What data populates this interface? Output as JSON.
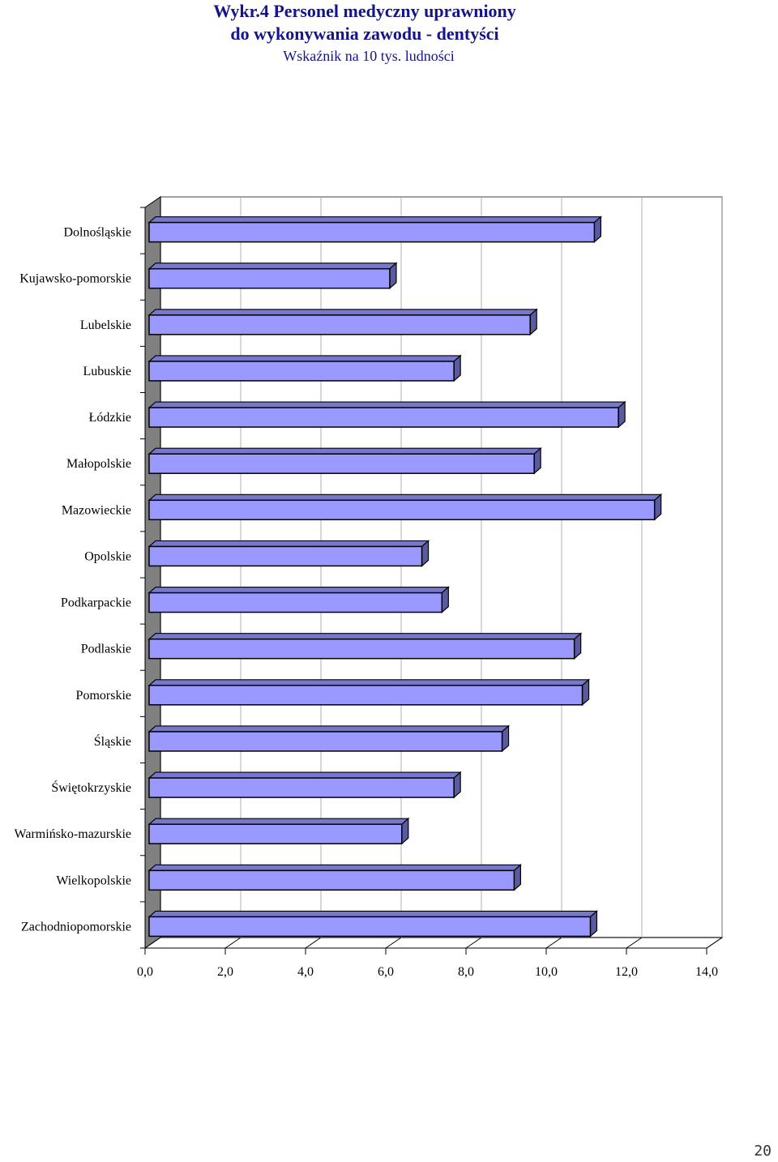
{
  "title_line1": "Wykr.4 Personel medyczny uprawniony",
  "title_line2": "do wykonywania zawodu - dentyści",
  "subtitle": "Wskaźnik na 10 tys. ludności",
  "page_number": "20",
  "chart_data": {
    "type": "bar",
    "orientation": "horizontal",
    "title": "Wykr.4 Personel medyczny uprawniony do wykonywania zawodu - dentyści",
    "subtitle": "Wskaźnik na 10 tys. ludności",
    "categories": [
      "Dolnośląskie",
      "Kujawsko-pomorskie",
      "Lubelskie",
      "Lubuskie",
      "Łódzkie",
      "Małopolskie",
      "Mazowieckie",
      "Opolskie",
      "Podkarpackie",
      "Podlaskie",
      "Pomorskie",
      "Śląskie",
      "Świętokrzyskie",
      "Warmińsko-mazurskie",
      "Wielkopolskie",
      "Zachodniopomorskie"
    ],
    "values": [
      11.2,
      6.1,
      9.6,
      7.7,
      11.8,
      9.7,
      12.7,
      6.9,
      7.4,
      10.7,
      10.9,
      8.9,
      7.7,
      6.4,
      9.2,
      11.1
    ],
    "xlim": [
      0,
      14
    ],
    "x_ticks": [
      "0,0",
      "2,0",
      "4,0",
      "6,0",
      "8,0",
      "10,0",
      "12,0",
      "14,0"
    ],
    "grid": true,
    "legend": "none",
    "bar_color": "#9999ff",
    "bar_side_color": "#5a5aa0",
    "wall_color": "#808080"
  }
}
